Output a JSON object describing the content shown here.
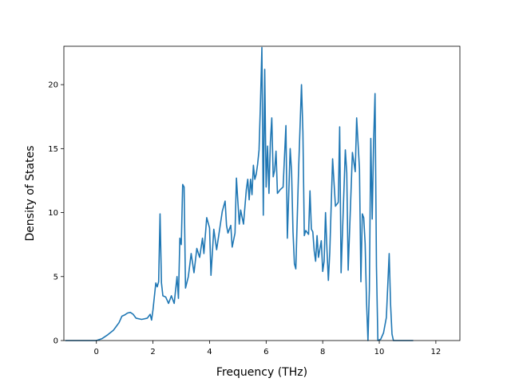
{
  "chart_data": {
    "type": "line",
    "title": "",
    "xlabel": "Frequency (THz)",
    "ylabel": "Density of States",
    "xlim": [
      -1.15,
      12.85
    ],
    "ylim": [
      0,
      23.0
    ],
    "xticks": [
      0,
      2,
      4,
      6,
      8,
      10,
      12
    ],
    "yticks": [
      0,
      5,
      10,
      15,
      20
    ],
    "grid": false,
    "line_color": "#1f77b4",
    "series": [
      {
        "name": "",
        "points": [
          [
            -1.1,
            0
          ],
          [
            0.0,
            0
          ],
          [
            0.2,
            0.15
          ],
          [
            0.4,
            0.45
          ],
          [
            0.6,
            0.8
          ],
          [
            0.7,
            1.1
          ],
          [
            0.8,
            1.4
          ],
          [
            0.9,
            1.9
          ],
          [
            1.0,
            2.0
          ],
          [
            1.1,
            2.15
          ],
          [
            1.2,
            2.2
          ],
          [
            1.3,
            2.05
          ],
          [
            1.4,
            1.75
          ],
          [
            1.5,
            1.7
          ],
          [
            1.6,
            1.65
          ],
          [
            1.7,
            1.7
          ],
          [
            1.8,
            1.75
          ],
          [
            1.9,
            2.05
          ],
          [
            1.95,
            1.6
          ],
          [
            2.0,
            2.4
          ],
          [
            2.1,
            4.5
          ],
          [
            2.15,
            4.2
          ],
          [
            2.2,
            4.6
          ],
          [
            2.25,
            9.9
          ],
          [
            2.3,
            4.5
          ],
          [
            2.35,
            3.5
          ],
          [
            2.45,
            3.4
          ],
          [
            2.55,
            2.9
          ],
          [
            2.65,
            3.5
          ],
          [
            2.75,
            2.9
          ],
          [
            2.85,
            5.0
          ],
          [
            2.9,
            3.3
          ],
          [
            2.95,
            8.0
          ],
          [
            3.0,
            7.5
          ],
          [
            3.05,
            12.2
          ],
          [
            3.1,
            12.0
          ],
          [
            3.15,
            4.1
          ],
          [
            3.25,
            5.0
          ],
          [
            3.35,
            6.8
          ],
          [
            3.45,
            5.3
          ],
          [
            3.55,
            7.2
          ],
          [
            3.65,
            6.5
          ],
          [
            3.75,
            8.0
          ],
          [
            3.8,
            6.8
          ],
          [
            3.9,
            9.6
          ],
          [
            4.0,
            8.8
          ],
          [
            4.05,
            5.1
          ],
          [
            4.15,
            8.7
          ],
          [
            4.25,
            7.1
          ],
          [
            4.35,
            8.6
          ],
          [
            4.45,
            10.1
          ],
          [
            4.55,
            10.9
          ],
          [
            4.6,
            9.0
          ],
          [
            4.65,
            8.4
          ],
          [
            4.75,
            9.0
          ],
          [
            4.8,
            7.3
          ],
          [
            4.9,
            8.4
          ],
          [
            4.95,
            12.7
          ],
          [
            5.05,
            9.1
          ],
          [
            5.1,
            10.2
          ],
          [
            5.2,
            9.1
          ],
          [
            5.3,
            11.8
          ],
          [
            5.35,
            12.6
          ],
          [
            5.4,
            11.0
          ],
          [
            5.45,
            12.6
          ],
          [
            5.5,
            11.4
          ],
          [
            5.55,
            13.7
          ],
          [
            5.6,
            12.6
          ],
          [
            5.65,
            13.0
          ],
          [
            5.7,
            13.8
          ],
          [
            5.75,
            14.9
          ],
          [
            5.8,
            18.6
          ],
          [
            5.85,
            22.9
          ],
          [
            5.9,
            9.8
          ],
          [
            5.95,
            21.2
          ],
          [
            6.0,
            12.0
          ],
          [
            6.05,
            15.2
          ],
          [
            6.1,
            11.5
          ],
          [
            6.15,
            15.5
          ],
          [
            6.2,
            17.4
          ],
          [
            6.25,
            12.8
          ],
          [
            6.3,
            13.3
          ],
          [
            6.35,
            14.8
          ],
          [
            6.4,
            11.5
          ],
          [
            6.5,
            11.8
          ],
          [
            6.6,
            12.0
          ],
          [
            6.7,
            16.8
          ],
          [
            6.75,
            8.0
          ],
          [
            6.85,
            15.0
          ],
          [
            6.9,
            13.2
          ],
          [
            6.95,
            8.5
          ],
          [
            7.0,
            6.0
          ],
          [
            7.05,
            5.6
          ],
          [
            7.15,
            13.5
          ],
          [
            7.25,
            20.0
          ],
          [
            7.3,
            16.3
          ],
          [
            7.35,
            8.2
          ],
          [
            7.4,
            8.6
          ],
          [
            7.5,
            8.3
          ],
          [
            7.55,
            11.7
          ],
          [
            7.6,
            8.7
          ],
          [
            7.65,
            8.5
          ],
          [
            7.7,
            7.0
          ],
          [
            7.75,
            6.2
          ],
          [
            7.8,
            8.2
          ],
          [
            7.85,
            6.5
          ],
          [
            7.95,
            7.8
          ],
          [
            8.0,
            5.4
          ],
          [
            8.05,
            6.2
          ],
          [
            8.1,
            10.0
          ],
          [
            8.15,
            7.1
          ],
          [
            8.2,
            4.7
          ],
          [
            8.25,
            6.9
          ],
          [
            8.35,
            14.2
          ],
          [
            8.45,
            10.5
          ],
          [
            8.55,
            10.8
          ],
          [
            8.6,
            16.7
          ],
          [
            8.65,
            5.3
          ],
          [
            8.8,
            14.9
          ],
          [
            8.85,
            13.1
          ],
          [
            8.9,
            5.5
          ],
          [
            9.0,
            11.6
          ],
          [
            9.05,
            14.7
          ],
          [
            9.15,
            13.2
          ],
          [
            9.2,
            17.4
          ],
          [
            9.3,
            13.4
          ],
          [
            9.35,
            4.6
          ],
          [
            9.4,
            9.9
          ],
          [
            9.45,
            9.6
          ],
          [
            9.5,
            7.6
          ],
          [
            9.55,
            3.0
          ],
          [
            9.6,
            0.0
          ],
          [
            9.65,
            4.0
          ],
          [
            9.7,
            15.8
          ],
          [
            9.75,
            9.5
          ],
          [
            9.8,
            15.6
          ],
          [
            9.85,
            19.3
          ],
          [
            9.9,
            5.8
          ],
          [
            9.95,
            0.0
          ],
          [
            10.05,
            0.1
          ],
          [
            10.15,
            0.6
          ],
          [
            10.25,
            1.8
          ],
          [
            10.35,
            6.8
          ],
          [
            10.4,
            2.8
          ],
          [
            10.45,
            0.5
          ],
          [
            10.5,
            0
          ],
          [
            11.2,
            0
          ]
        ]
      }
    ]
  }
}
